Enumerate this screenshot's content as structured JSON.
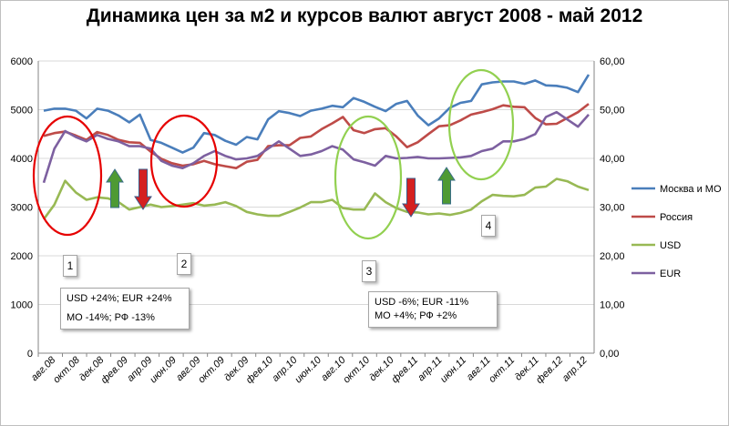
{
  "chart_data": {
    "type": "line",
    "title": "Динамика цен за м2 и курсов валют август 2008 - май 2012",
    "x_tick_labels": [
      "авг.08",
      "окт.08",
      "дек.08",
      "фев.09",
      "апр.09",
      "июн.09",
      "авг.09",
      "окт.09",
      "дек.09",
      "фев.10",
      "апр.10",
      "июн.10",
      "авг.10",
      "окт.10",
      "дек.10",
      "фев.11",
      "апр.11",
      "июн.11",
      "авг.11",
      "окт.11",
      "дек.11",
      "фев.12",
      "апр.12"
    ],
    "y_left": {
      "min": 0,
      "max": 6000,
      "ticks": [
        "0",
        "1000",
        "2000",
        "3000",
        "4000",
        "5000",
        "6000"
      ]
    },
    "y_right": {
      "min": 0,
      "max": 60,
      "ticks": [
        "0,00",
        "10,00",
        "20,00",
        "30,00",
        "40,00",
        "50,00",
        "60,00"
      ]
    },
    "series": [
      {
        "name": "Москва и МО",
        "axis": "left",
        "color": "#4a7ebb",
        "values": [
          4980,
          5020,
          5020,
          4980,
          4820,
          5020,
          4980,
          4880,
          4740,
          4900,
          4380,
          4320,
          4220,
          4120,
          4220,
          4520,
          4480,
          4360,
          4280,
          4440,
          4390,
          4800,
          4970,
          4930,
          4870,
          4980,
          5020,
          5080,
          5050,
          5240,
          5160,
          5060,
          4970,
          5120,
          5180,
          4880,
          4680,
          4820,
          5040,
          5140,
          5180,
          5520,
          5560,
          5580,
          5580,
          5530,
          5600,
          5500,
          5490,
          5450,
          5360,
          5720
        ]
      },
      {
        "name": "Россия",
        "axis": "left",
        "color": "#be4b48",
        "values": [
          4460,
          4520,
          4550,
          4470,
          4380,
          4540,
          4480,
          4380,
          4330,
          4320,
          4140,
          3990,
          3900,
          3850,
          3880,
          3950,
          3880,
          3840,
          3800,
          3930,
          3970,
          4250,
          4270,
          4270,
          4420,
          4450,
          4600,
          4720,
          4850,
          4580,
          4520,
          4600,
          4620,
          4450,
          4230,
          4330,
          4500,
          4660,
          4680,
          4780,
          4900,
          4950,
          5010,
          5090,
          5060,
          5050,
          4830,
          4700,
          4710,
          4830,
          4950,
          5120
        ]
      },
      {
        "name": "USD",
        "axis": "right",
        "color": "#98b954",
        "values": [
          27.5,
          30.5,
          35.4,
          33.0,
          31.5,
          32.0,
          31.8,
          31.0,
          29.5,
          30.0,
          30.5,
          30.0,
          30.2,
          30.5,
          30.8,
          30.3,
          30.5,
          31.0,
          30.2,
          29.0,
          28.5,
          28.2,
          28.2,
          29.0,
          29.9,
          31.0,
          31.0,
          31.5,
          29.8,
          29.5,
          29.5,
          32.8,
          31.0,
          29.8,
          29.0,
          28.9,
          28.5,
          28.7,
          28.4,
          28.8,
          29.5,
          31.2,
          32.5,
          32.3,
          32.2,
          32.5,
          34.0,
          34.2,
          35.8,
          35.3,
          34.2,
          33.5
        ]
      },
      {
        "name": "EUR",
        "axis": "right",
        "color": "#7d60a0",
        "values": [
          35.0,
          42.0,
          45.6,
          44.4,
          43.5,
          44.8,
          44.0,
          43.5,
          42.5,
          42.5,
          42.0,
          39.5,
          38.5,
          38.0,
          39.0,
          40.5,
          41.5,
          40.5,
          39.8,
          40.0,
          40.5,
          42.0,
          43.5,
          42.0,
          40.5,
          40.8,
          41.5,
          42.5,
          41.8,
          39.8,
          39.2,
          38.5,
          40.5,
          40.0,
          40.1,
          40.3,
          40.0,
          40.0,
          40.1,
          40.2,
          40.5,
          41.5,
          42.0,
          43.5,
          43.5,
          44.0,
          45.0,
          48.5,
          49.5,
          48.0,
          46.5,
          49.0
        ]
      }
    ],
    "legend_position": "right",
    "annotations": {
      "numbers": [
        "1",
        "2",
        "3",
        "4"
      ],
      "note1": [
        "USD +24%; EUR +24%",
        "МО -14%; РФ -13%"
      ],
      "note2": [
        "USD -6%; EUR -11%",
        "МО +4%; РФ +2%"
      ]
    }
  },
  "colors": {
    "moscow": "#4a7ebb",
    "russia": "#be4b48",
    "usd": "#98b954",
    "eur": "#7d60a0",
    "ellipse_red": "#e60000",
    "ellipse_green": "#92d050",
    "arrow_up": "#4e9a34",
    "arrow_down": "#d42020"
  }
}
